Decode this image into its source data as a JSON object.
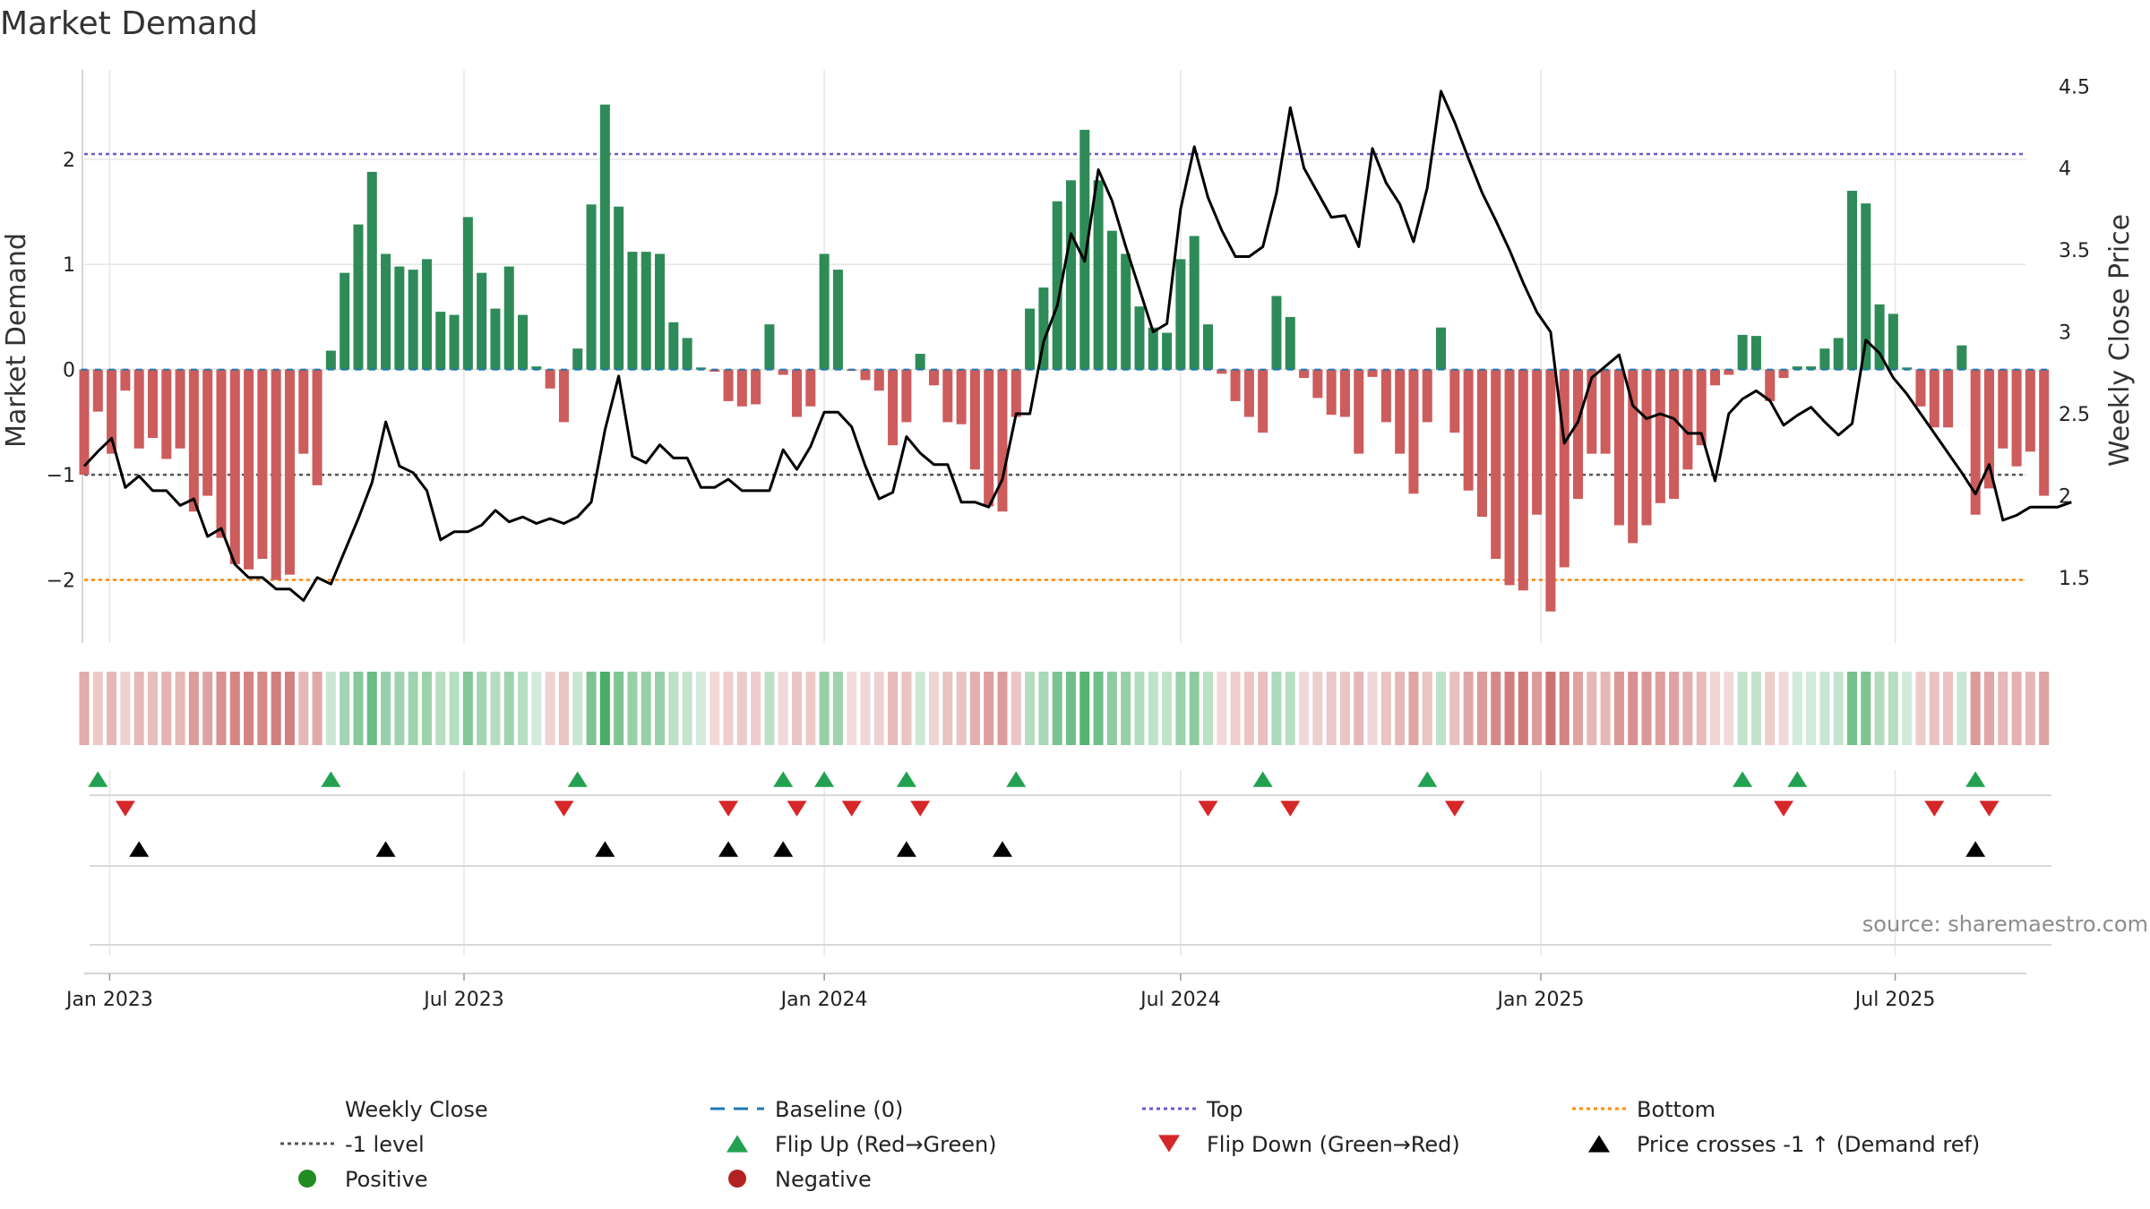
{
  "chart_data": {
    "type": "bar",
    "title": "Market Demand",
    "ylabel": "Market Demand",
    "y2label": "Weekly Close Price",
    "ylim": [
      -2.6,
      2.85
    ],
    "y2lim": [
      1.1,
      4.6
    ],
    "yticks": [
      -2,
      -1,
      0,
      1,
      2
    ],
    "yticklabels": [
      "−2",
      "−1",
      "0",
      "1",
      "2"
    ],
    "y2ticks": [
      1.5,
      2,
      2.5,
      3,
      3.5,
      4,
      4.5
    ],
    "y2ticklabels": [
      "1.5",
      "2",
      "2.5",
      "3",
      "3.5",
      "4",
      "4.5"
    ],
    "xrange": [
      "2022-12-19",
      "2025-09-06"
    ],
    "xticks": [
      {
        "date": "2023-01-01",
        "label": "Jan 2023"
      },
      {
        "date": "2023-07-01",
        "label": "Jul 2023"
      },
      {
        "date": "2024-01-01",
        "label": "Jan 2024"
      },
      {
        "date": "2024-07-01",
        "label": "Jul 2024"
      },
      {
        "date": "2025-01-01",
        "label": "Jan 2025"
      },
      {
        "date": "2025-07-01",
        "label": "Jul 2025"
      }
    ],
    "start_date": "2022-12-19",
    "week_days": 7,
    "demand": [
      -1.0,
      -0.4,
      -0.8,
      -0.2,
      -0.75,
      -0.65,
      -0.85,
      -0.75,
      -1.35,
      -1.2,
      -1.6,
      -1.85,
      -1.9,
      -1.8,
      -2.0,
      -1.95,
      -0.8,
      -1.1,
      0.18,
      0.92,
      1.38,
      1.88,
      1.1,
      0.98,
      0.95,
      1.05,
      0.55,
      0.52,
      1.45,
      0.92,
      0.58,
      0.98,
      0.52,
      0.03,
      -0.18,
      -0.5,
      0.2,
      1.57,
      2.52,
      1.55,
      1.12,
      1.12,
      1.1,
      0.45,
      0.3,
      0.02,
      -0.02,
      -0.3,
      -0.35,
      -0.33,
      0.43,
      -0.05,
      -0.45,
      -0.35,
      1.1,
      0.95,
      -0.01,
      -0.1,
      -0.2,
      -0.72,
      -0.5,
      0.15,
      -0.15,
      -0.5,
      -0.52,
      -0.95,
      -1.3,
      -1.35,
      -0.45,
      0.58,
      0.78,
      1.6,
      1.8,
      2.28,
      1.8,
      1.32,
      1.1,
      0.6,
      0.4,
      0.35,
      1.05,
      1.27,
      0.43,
      -0.04,
      -0.3,
      -0.45,
      -0.6,
      0.7,
      0.5,
      -0.08,
      -0.27,
      -0.43,
      -0.45,
      -0.8,
      -0.07,
      -0.5,
      -0.8,
      -1.18,
      -0.5,
      0.4,
      -0.6,
      -1.15,
      -1.4,
      -1.8,
      -2.05,
      -2.1,
      -1.38,
      -2.3,
      -1.88,
      -1.23,
      -0.8,
      -0.8,
      -1.48,
      -1.65,
      -1.48,
      -1.27,
      -1.23,
      -0.95,
      -0.72,
      -0.15,
      -0.05,
      0.33,
      0.32,
      -0.3,
      -0.08,
      0.03,
      0.03,
      0.2,
      0.3,
      1.7,
      1.58,
      0.62,
      0.53,
      0.02,
      -0.35,
      -0.55,
      -0.55,
      0.23,
      -1.38,
      -1.13,
      -0.75,
      -0.92,
      -0.78,
      -1.2
    ],
    "close": [
      2.18,
      2.27,
      2.35,
      2.05,
      2.12,
      2.03,
      2.03,
      1.94,
      1.98,
      1.75,
      1.8,
      1.58,
      1.5,
      1.5,
      1.43,
      1.43,
      1.36,
      1.5,
      1.46,
      1.66,
      1.86,
      2.08,
      2.45,
      2.18,
      2.14,
      2.03,
      1.73,
      1.78,
      1.78,
      1.82,
      1.91,
      1.84,
      1.87,
      1.83,
      1.86,
      1.83,
      1.87,
      1.96,
      2.4,
      2.73,
      2.24,
      2.2,
      2.31,
      2.23,
      2.23,
      2.05,
      2.05,
      2.1,
      2.03,
      2.03,
      2.03,
      2.28,
      2.16,
      2.3,
      2.51,
      2.51,
      2.42,
      2.18,
      1.98,
      2.02,
      2.36,
      2.26,
      2.19,
      2.19,
      1.96,
      1.96,
      1.93,
      2.1,
      2.5,
      2.5,
      2.94,
      3.16,
      3.6,
      3.43,
      3.99,
      3.8,
      3.52,
      3.26,
      3.0,
      3.05,
      3.75,
      4.13,
      3.82,
      3.62,
      3.46,
      3.46,
      3.52,
      3.85,
      4.37,
      4.0,
      3.85,
      3.7,
      3.71,
      3.52,
      4.12,
      3.91,
      3.78,
      3.55,
      3.88,
      4.47,
      4.28,
      4.06,
      3.85,
      3.68,
      3.5,
      3.3,
      3.12,
      3.0,
      2.32,
      2.45,
      2.72,
      2.79,
      2.86,
      2.55,
      2.47,
      2.5,
      2.47,
      2.38,
      2.38,
      2.09,
      2.5,
      2.59,
      2.64,
      2.58,
      2.43,
      2.49,
      2.54,
      2.45,
      2.37,
      2.44,
      2.95,
      2.87,
      2.72,
      2.62,
      2.5,
      2.38,
      2.26,
      2.14,
      2.01,
      2.19,
      1.85,
      1.88,
      1.93,
      1.93,
      1.93,
      1.96
    ],
    "flip_up_weeks": [
      1,
      18,
      36,
      51,
      54,
      60,
      68,
      86,
      98,
      121,
      125,
      138
    ],
    "flip_down_weeks": [
      3,
      35,
      47,
      52,
      56,
      61,
      82,
      88,
      100,
      124,
      135,
      139
    ],
    "price_cross_up_weeks": [
      4,
      22,
      38,
      47,
      51,
      60,
      67,
      138
    ],
    "levels": {
      "top": 2.05,
      "neg_one": -1,
      "bottom": -2,
      "baseline": 0
    },
    "colors": {
      "positive_bar": "#2e8b57",
      "negative_bar": "#cd5c5c",
      "close_line": "#000000",
      "baseline": "#1f77b4",
      "top": "#6a5acd",
      "bottom": "#ff8c00",
      "neg_one": "#555555",
      "flip_up": "#22a150",
      "flip_down": "#d62728",
      "price_cross": "#000000",
      "positive_dot": "#228b22",
      "negative_dot": "#b22222"
    },
    "legend": [
      {
        "key": "close",
        "label": "Weekly Close",
        "symbol": "line"
      },
      {
        "key": "baseline",
        "label": "Baseline (0)",
        "symbol": "dash"
      },
      {
        "key": "top",
        "label": "Top",
        "symbol": "dot"
      },
      {
        "key": "bottom",
        "label": "Bottom",
        "symbol": "dot"
      },
      {
        "key": "neg_one",
        "label": "-1 level",
        "symbol": "dot"
      },
      {
        "key": "flip_up",
        "label": "Flip Up (Red→Green)",
        "symbol": "tri-up"
      },
      {
        "key": "flip_down",
        "label": "Flip Down (Green→Red)",
        "symbol": "tri-down"
      },
      {
        "key": "price_cross",
        "label": "Price crosses -1 ↑ (Demand ref)",
        "symbol": "tri-up"
      },
      {
        "key": "positive_dot",
        "label": "Positive",
        "symbol": "circle"
      },
      {
        "key": "negative_dot",
        "label": "Negative",
        "symbol": "circle"
      }
    ],
    "source": "source: sharemaestro.com"
  }
}
